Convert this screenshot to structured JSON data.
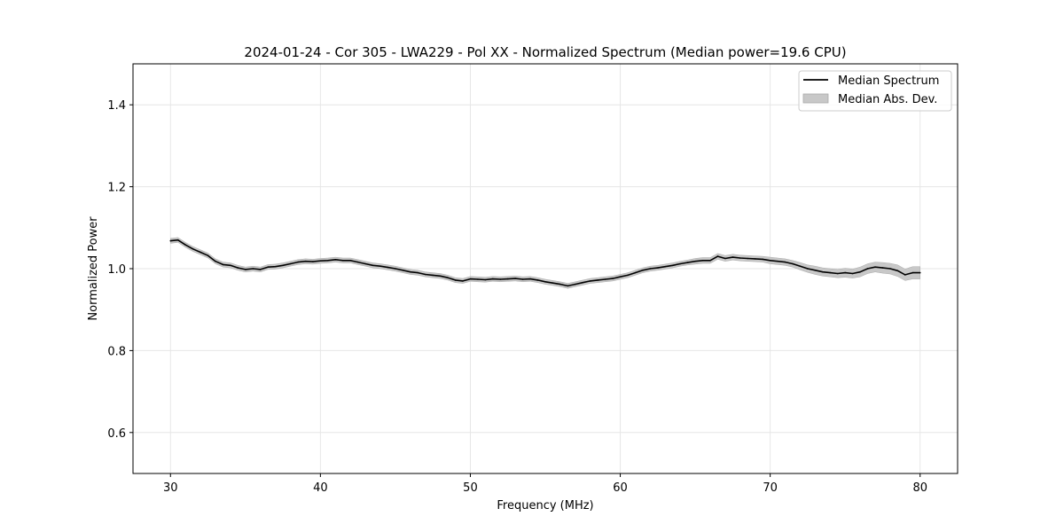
{
  "chart_data": {
    "type": "line",
    "title": "2024-01-24 - Cor 305 - LWA229 - Pol XX - Normalized Spectrum (Median power=19.6 CPU)",
    "xlabel": "Frequency (MHz)",
    "ylabel": "Normalized Power",
    "xlim": [
      27.5,
      82.5
    ],
    "ylim": [
      0.5,
      1.5
    ],
    "xticks": [
      30,
      40,
      50,
      60,
      70,
      80
    ],
    "yticks": [
      0.6,
      0.8,
      1.0,
      1.2,
      1.4
    ],
    "xtick_labels": [
      "30",
      "40",
      "50",
      "60",
      "70",
      "80"
    ],
    "ytick_labels": [
      "0.6",
      "0.8",
      "1.0",
      "1.2",
      "1.4"
    ],
    "grid": true,
    "legend_position": "top-right",
    "legend": {
      "line_label": "Median Spectrum",
      "band_label": "Median Abs. Dev."
    },
    "series": [
      {
        "name": "Median Spectrum",
        "color": "#000000",
        "x": [
          30,
          30.5,
          31,
          31.5,
          32,
          32.5,
          33,
          33.5,
          34,
          34.5,
          35,
          35.5,
          36,
          36.5,
          37,
          37.5,
          38,
          38.5,
          39,
          39.5,
          40,
          40.5,
          41,
          41.5,
          42,
          42.5,
          43,
          43.5,
          44,
          44.5,
          45,
          45.5,
          46,
          46.5,
          47,
          47.5,
          48,
          48.5,
          49,
          49.5,
          50,
          50.5,
          51,
          51.5,
          52,
          52.5,
          53,
          53.5,
          54,
          54.5,
          55,
          55.5,
          56,
          56.5,
          57,
          57.5,
          58,
          58.5,
          59,
          59.5,
          60,
          60.5,
          61,
          61.5,
          62,
          62.5,
          63,
          63.5,
          64,
          64.5,
          65,
          65.5,
          66,
          66.5,
          67,
          67.5,
          68,
          68.5,
          69,
          69.5,
          70,
          70.5,
          71,
          71.5,
          72,
          72.5,
          73,
          73.5,
          74,
          74.5,
          75,
          75.5,
          76,
          76.5,
          77,
          77.5,
          78,
          78.5,
          79,
          79.5,
          80
        ],
        "values": [
          1.068,
          1.07,
          1.058,
          1.048,
          1.04,
          1.032,
          1.018,
          1.01,
          1.008,
          1.002,
          0.998,
          1.0,
          0.998,
          1.004,
          1.005,
          1.008,
          1.012,
          1.016,
          1.018,
          1.017,
          1.019,
          1.02,
          1.022,
          1.02,
          1.02,
          1.016,
          1.012,
          1.008,
          1.006,
          1.003,
          1.0,
          0.996,
          0.992,
          0.99,
          0.986,
          0.984,
          0.982,
          0.978,
          0.972,
          0.97,
          0.975,
          0.974,
          0.973,
          0.975,
          0.974,
          0.975,
          0.976,
          0.974,
          0.975,
          0.972,
          0.968,
          0.965,
          0.962,
          0.958,
          0.962,
          0.966,
          0.97,
          0.972,
          0.974,
          0.976,
          0.98,
          0.984,
          0.99,
          0.996,
          1.0,
          1.002,
          1.005,
          1.008,
          1.012,
          1.015,
          1.018,
          1.02,
          1.02,
          1.03,
          1.025,
          1.028,
          1.026,
          1.025,
          1.024,
          1.023,
          1.02,
          1.018,
          1.016,
          1.012,
          1.006,
          1.0,
          0.996,
          0.992,
          0.99,
          0.988,
          0.99,
          0.988,
          0.992,
          1.0,
          1.004,
          1.002,
          1.0,
          0.995,
          0.985,
          0.99,
          0.99
        ]
      },
      {
        "name": "Median Abs. Dev.",
        "color": "#c8c8c8",
        "half_width": [
          0.006,
          0.006,
          0.006,
          0.006,
          0.006,
          0.006,
          0.006,
          0.006,
          0.006,
          0.006,
          0.006,
          0.006,
          0.006,
          0.006,
          0.006,
          0.006,
          0.006,
          0.006,
          0.006,
          0.006,
          0.006,
          0.006,
          0.006,
          0.006,
          0.006,
          0.006,
          0.006,
          0.006,
          0.006,
          0.006,
          0.006,
          0.006,
          0.006,
          0.006,
          0.006,
          0.006,
          0.006,
          0.006,
          0.006,
          0.006,
          0.006,
          0.006,
          0.006,
          0.006,
          0.006,
          0.006,
          0.006,
          0.006,
          0.006,
          0.006,
          0.006,
          0.006,
          0.006,
          0.006,
          0.006,
          0.006,
          0.006,
          0.006,
          0.006,
          0.006,
          0.006,
          0.006,
          0.006,
          0.006,
          0.006,
          0.006,
          0.006,
          0.006,
          0.006,
          0.006,
          0.007,
          0.007,
          0.007,
          0.007,
          0.007,
          0.007,
          0.007,
          0.007,
          0.007,
          0.007,
          0.008,
          0.008,
          0.008,
          0.008,
          0.009,
          0.009,
          0.01,
          0.01,
          0.01,
          0.01,
          0.011,
          0.011,
          0.012,
          0.012,
          0.012,
          0.013,
          0.013,
          0.014,
          0.014,
          0.015,
          0.015
        ]
      }
    ]
  }
}
